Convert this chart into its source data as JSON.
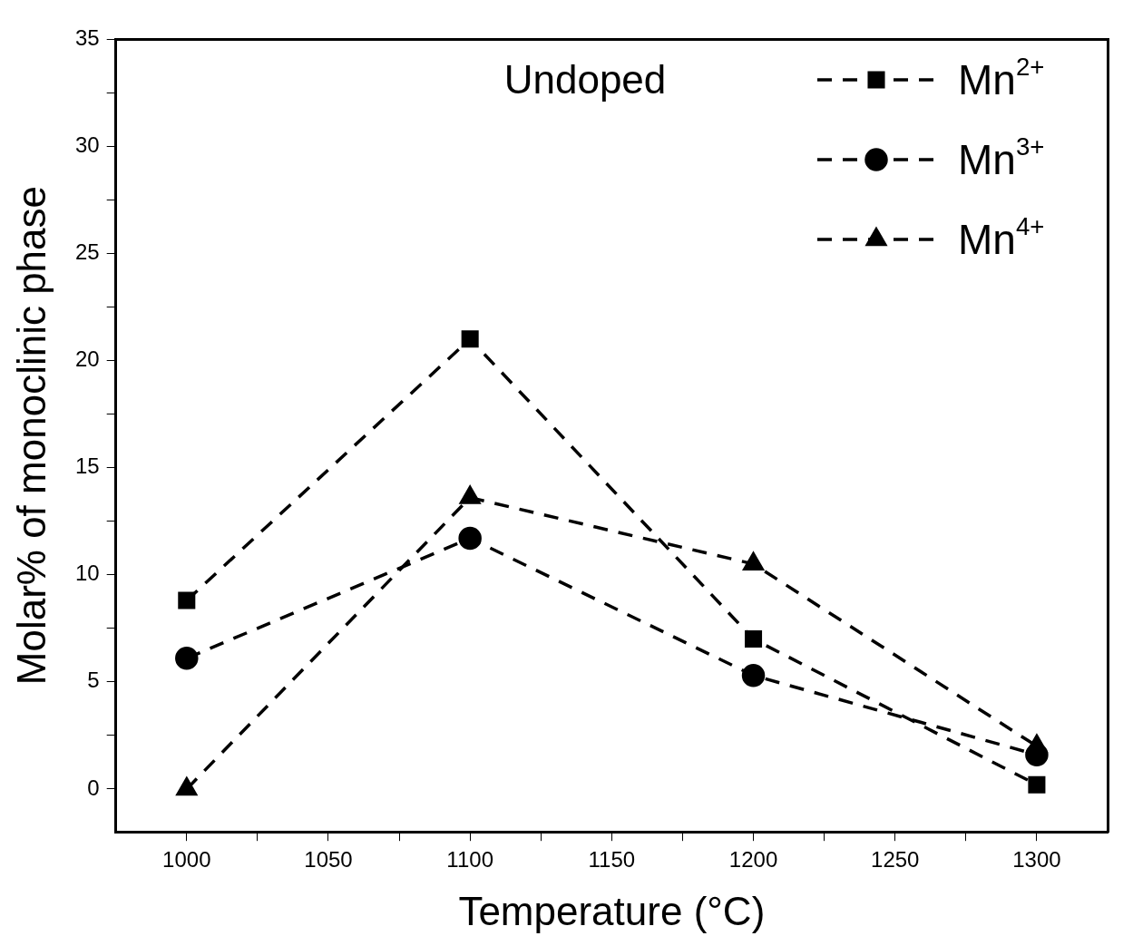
{
  "chart_data": {
    "type": "line",
    "xlabel": "Temperature (°C)",
    "ylabel": "Molar% of monoclinic phase",
    "annotations": [
      "Undoped"
    ],
    "x": [
      1000,
      1100,
      1200,
      1300
    ],
    "xlim": [
      975,
      1325
    ],
    "xticks": [
      1000,
      {
        "value": 1025,
        "label": null
      },
      1050,
      {
        "value": 1075,
        "label": null
      },
      1100,
      {
        "value": 1125,
        "label": null
      },
      1150,
      {
        "value": 1175,
        "label": null
      },
      1200,
      {
        "value": 1225,
        "label": null
      },
      1250,
      {
        "value": 1275,
        "label": null
      },
      1300
    ],
    "ylim": [
      -2,
      35
    ],
    "yticks": [
      0,
      {
        "value": 2.5,
        "label": null
      },
      5,
      {
        "value": 7.5,
        "label": null
      },
      10,
      {
        "value": 12.5,
        "label": null
      },
      15,
      {
        "value": 17.5,
        "label": null
      },
      20,
      {
        "value": 22.5,
        "label": null
      },
      25,
      {
        "value": 27.5,
        "label": null
      },
      30,
      {
        "value": 32.5,
        "label": null
      },
      35
    ],
    "series": [
      {
        "name": "Mn$^{2+}$",
        "color": "#000000",
        "marker": "square",
        "values": [
          8.8,
          21.0,
          7.0,
          0.2
        ]
      },
      {
        "name": "Mn$^{3+}$",
        "color": "#000000",
        "marker": "circle",
        "values": [
          6.1,
          11.7,
          5.3,
          1.6
        ]
      },
      {
        "name": "Mn$^{4+}$",
        "color": "#000000",
        "marker": "triangle",
        "values": [
          0.0,
          13.6,
          10.5,
          2.0
        ]
      }
    ],
    "legend": "top right",
    "line_style": "dashed",
    "grid": false
  }
}
